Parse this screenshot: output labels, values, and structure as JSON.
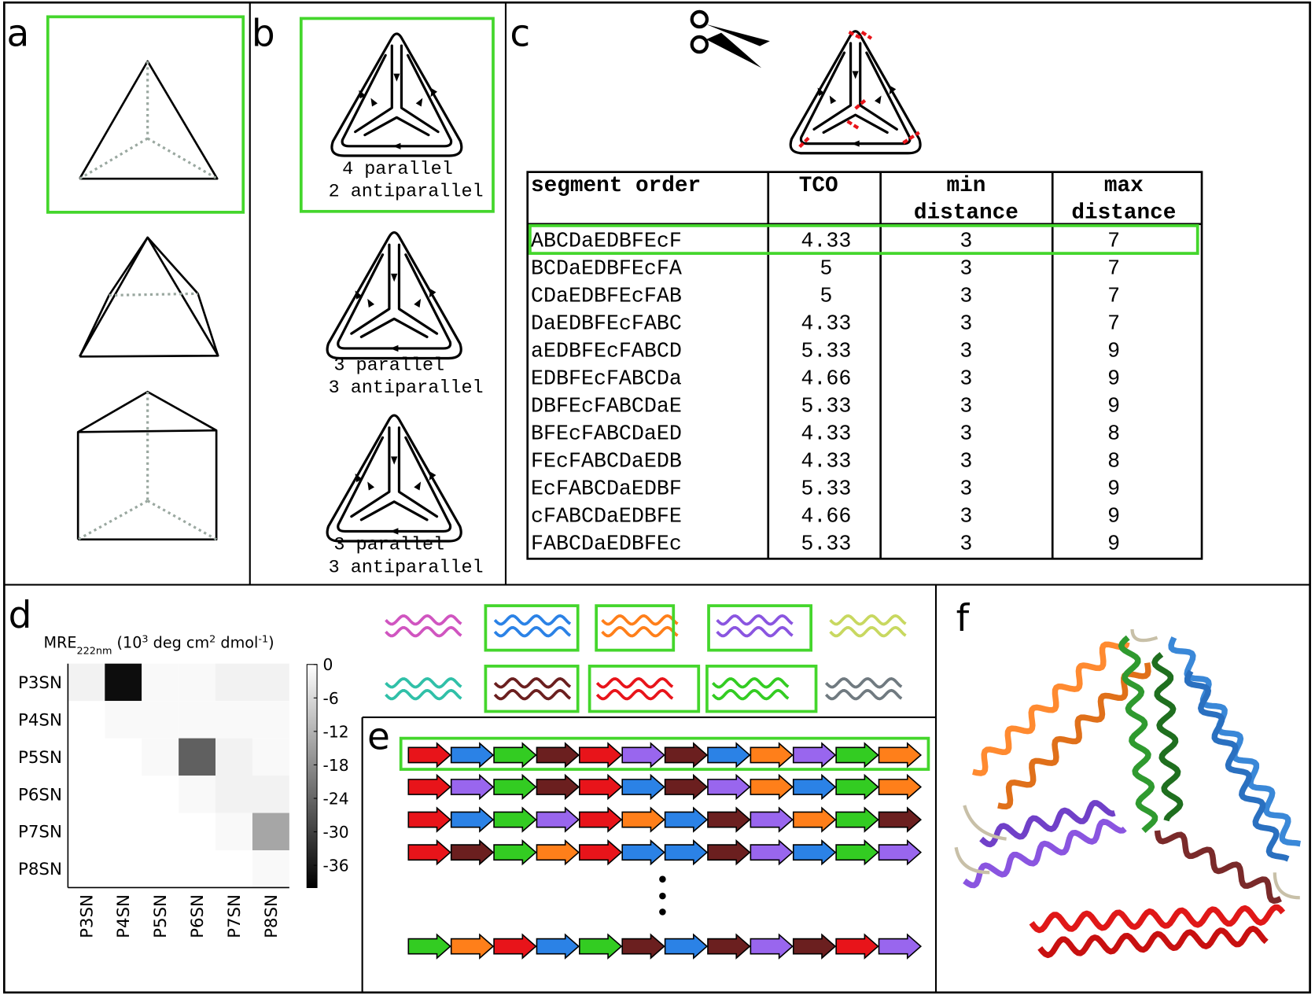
{
  "panels": {
    "a": {
      "label": "a"
    },
    "b": {
      "label": "b",
      "captions": [
        [
          "4 parallel",
          "2 antiparallel"
        ],
        [
          "3 parallel",
          "3 antiparallel"
        ],
        [
          "3 parallel",
          "3 antiparallel"
        ]
      ]
    },
    "c": {
      "label": "c",
      "table": {
        "header": [
          [
            "segment order"
          ],
          [
            "TCO"
          ],
          [
            "min",
            "distance"
          ],
          [
            "max",
            "distance"
          ]
        ],
        "rows": [
          [
            "ABCDaEDBFEcF",
            4.33,
            3,
            7
          ],
          [
            "BCDaEDBFEcFA",
            5,
            3,
            7
          ],
          [
            "CDaEDBFEcFAB",
            5,
            3,
            7
          ],
          [
            "DaEDBFEcFABC",
            4.33,
            3,
            7
          ],
          [
            "aEDBFEcFABCD",
            5.33,
            3,
            9
          ],
          [
            "EDBFEcFABCDa",
            4.66,
            3,
            9
          ],
          [
            "DBFEcFABCDaE",
            5.33,
            3,
            9
          ],
          [
            "BFEcFABCDaED",
            4.33,
            3,
            8
          ],
          [
            "FEcFABCDaEDB",
            4.33,
            3,
            8
          ],
          [
            "EcFABCDaEDBF",
            5.33,
            3,
            9
          ],
          [
            "cFABCDaEDBFE",
            4.66,
            3,
            9
          ],
          [
            "FABCDaEDBFEc",
            5.33,
            3,
            9
          ]
        ]
      }
    },
    "d": {
      "label": "d",
      "heatmap": {
        "title": {
          "main": "MRE",
          "sub": "222nm",
          "a": " (10",
          "sup1": "3",
          "b": " deg cm",
          "sup2": "2",
          "c": " dmol",
          "sup3": "-1",
          "d": ")"
        },
        "rows": [
          "P3SN",
          "P4SN",
          "P5SN",
          "P6SN",
          "P7SN",
          "P8SN"
        ],
        "columns": [
          "P3SN",
          "P4SN",
          "P5SN",
          "P6SN",
          "P7SN",
          "P8SN"
        ],
        "values": [
          [
            -2,
            -38,
            -1,
            -1,
            -2,
            -2
          ],
          [
            null,
            -1,
            -1,
            -1,
            -1,
            -1
          ],
          [
            null,
            null,
            -1,
            -25,
            -2,
            -1
          ],
          [
            null,
            null,
            null,
            -1,
            -2,
            -2
          ],
          [
            null,
            null,
            null,
            null,
            -1,
            -14
          ],
          [
            null,
            null,
            null,
            null,
            null,
            -1
          ]
        ],
        "clim": [
          -40,
          0
        ],
        "cticks": [
          0,
          -6,
          -12,
          -18,
          -24,
          -30,
          -36
        ],
        "colormap": [
          "#000000",
          "#ffffff"
        ]
      },
      "helices": [
        {
          "color": "#d055c0",
          "boxed": false
        },
        {
          "color": "#2b82e6",
          "boxed": true
        },
        {
          "color": "#ff7f1a",
          "boxed": true
        },
        {
          "color": "#8a55e0",
          "boxed": true
        },
        {
          "color": "#c8d860",
          "boxed": false
        },
        {
          "color": "#30c0a8",
          "boxed": false
        },
        {
          "color": "#6b1f1f",
          "boxed": true
        },
        {
          "color": "#e8141a",
          "boxed": true
        },
        {
          "color": "#33cc22",
          "boxed": true
        },
        {
          "color": "#707a80",
          "boxed": false
        }
      ]
    },
    "e": {
      "label": "e",
      "rows": [
        [
          "#e8141a",
          "#2b82e6",
          "#33cc22",
          "#6b1f1f",
          "#e8141a",
          "#9966ee",
          "#6b1f1f",
          "#2b82e6",
          "#ff7f1a",
          "#9966ee",
          "#33cc22",
          "#ff7f1a"
        ],
        [
          "#e8141a",
          "#9966ee",
          "#33cc22",
          "#6b1f1f",
          "#e8141a",
          "#2b82e6",
          "#6b1f1f",
          "#9966ee",
          "#ff7f1a",
          "#2b82e6",
          "#33cc22",
          "#ff7f1a"
        ],
        [
          "#e8141a",
          "#2b82e6",
          "#33cc22",
          "#9966ee",
          "#e8141a",
          "#ff7f1a",
          "#2b82e6",
          "#6b1f1f",
          "#9966ee",
          "#ff7f1a",
          "#33cc22",
          "#6b1f1f"
        ],
        [
          "#e8141a",
          "#6b1f1f",
          "#33cc22",
          "#ff7f1a",
          "#e8141a",
          "#2b82e6",
          "#2b82e6",
          "#6b1f1f",
          "#9966ee",
          "#2b82e6",
          "#33cc22",
          "#9966ee"
        ],
        [
          "#33cc22",
          "#ff7f1a",
          "#e8141a",
          "#2b82e6",
          "#33cc22",
          "#6b1f1f",
          "#2b82e6",
          "#6b1f1f",
          "#9966ee",
          "#6b1f1f",
          "#e8141a",
          "#9966ee"
        ]
      ]
    },
    "f": {
      "label": "f"
    }
  }
}
